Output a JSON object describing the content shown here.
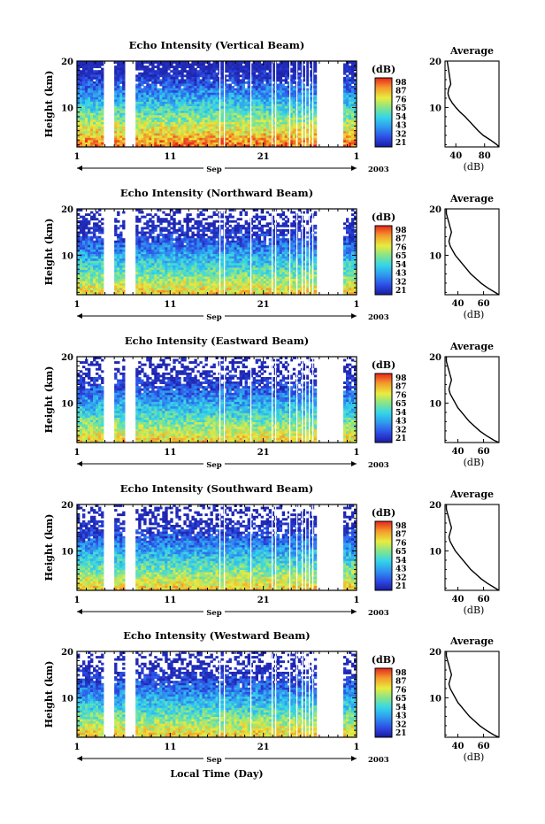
{
  "figure": {
    "xlabel": "Local Time (Day)",
    "month_label": "Sep",
    "year_label": "2003",
    "profile_title": "Average",
    "profile_xlabel": "(dB)",
    "colorbar_label": "(dB)"
  },
  "chart_data": [
    {
      "type": "heatmap",
      "title": "Echo Intensity (Vertical Beam)",
      "ylabel": "Height (km)",
      "x_ticks": [
        "1",
        "11",
        "21",
        "1"
      ],
      "y_ticks": [
        "10",
        "20"
      ],
      "ylim": [
        1.5,
        20
      ],
      "colorbar_ticks": [
        "98",
        "87",
        "76",
        "65",
        "54",
        "43",
        "32",
        "21"
      ],
      "colorbar_range": [
        21,
        98
      ],
      "profile": {
        "xticks": [
          "40",
          "80"
        ],
        "yticks": [
          "10",
          "20"
        ],
        "xlim": [
          25,
          100
        ],
        "height": [
          1.5,
          2,
          3,
          4,
          5,
          6,
          7,
          8,
          9,
          10,
          11,
          12,
          13,
          14,
          15,
          16,
          17,
          18,
          19,
          20
        ],
        "db": [
          100,
          97,
          88,
          78,
          71,
          65,
          59,
          53,
          46,
          40,
          35,
          31,
          29,
          30,
          33,
          32,
          31,
          30,
          29,
          28
        ]
      }
    },
    {
      "type": "heatmap",
      "title": "Echo Intensity (Northward Beam)",
      "ylabel": "Height (km)",
      "x_ticks": [
        "1",
        "11",
        "21",
        "1"
      ],
      "y_ticks": [
        "10",
        "20"
      ],
      "ylim": [
        1.5,
        20
      ],
      "colorbar_ticks": [
        "98",
        "87",
        "76",
        "65",
        "54",
        "43",
        "32",
        "21"
      ],
      "colorbar_range": [
        21,
        98
      ],
      "profile": {
        "xticks": [
          "40",
          "60"
        ],
        "yticks": [
          "10",
          "20"
        ],
        "xlim": [
          30,
          72
        ],
        "height": [
          1.5,
          2,
          3,
          4,
          5,
          6,
          7,
          8,
          9,
          10,
          11,
          12,
          13,
          14,
          15,
          16,
          17,
          18,
          19,
          20
        ],
        "db": [
          72,
          69,
          63,
          58,
          54,
          50,
          47,
          44,
          41,
          38,
          36,
          34,
          33,
          34,
          35,
          34,
          33,
          32,
          31,
          31
        ]
      }
    },
    {
      "type": "heatmap",
      "title": "Echo Intensity (Eastward Beam)",
      "ylabel": "Height (km)",
      "x_ticks": [
        "1",
        "11",
        "21",
        "1"
      ],
      "y_ticks": [
        "10",
        "20"
      ],
      "ylim": [
        1.5,
        20
      ],
      "colorbar_ticks": [
        "98",
        "87",
        "76",
        "65",
        "54",
        "43",
        "32",
        "21"
      ],
      "colorbar_range": [
        21,
        98
      ],
      "profile": {
        "xticks": [
          "40",
          "60"
        ],
        "yticks": [
          "10",
          "20"
        ],
        "xlim": [
          30,
          72
        ],
        "height": [
          1.5,
          2,
          3,
          4,
          5,
          6,
          7,
          8,
          9,
          10,
          11,
          12,
          13,
          14,
          15,
          16,
          17,
          18,
          19,
          20
        ],
        "db": [
          72,
          68,
          62,
          57,
          53,
          49,
          46,
          43,
          40,
          38,
          36,
          34,
          33,
          34,
          35,
          34,
          33,
          32,
          31,
          31
        ]
      }
    },
    {
      "type": "heatmap",
      "title": "Echo Intensity (Southward Beam)",
      "ylabel": "Height (km)",
      "x_ticks": [
        "1",
        "11",
        "21",
        "1"
      ],
      "y_ticks": [
        "10",
        "20"
      ],
      "ylim": [
        1.5,
        20
      ],
      "colorbar_ticks": [
        "98",
        "87",
        "76",
        "65",
        "54",
        "43",
        "32",
        "21"
      ],
      "colorbar_range": [
        21,
        98
      ],
      "profile": {
        "xticks": [
          "40",
          "60"
        ],
        "yticks": [
          "10",
          "20"
        ],
        "xlim": [
          30,
          72
        ],
        "height": [
          1.5,
          2,
          3,
          4,
          5,
          6,
          7,
          8,
          9,
          10,
          11,
          12,
          13,
          14,
          15,
          16,
          17,
          18,
          19,
          20
        ],
        "db": [
          72,
          69,
          63,
          58,
          54,
          50,
          47,
          44,
          41,
          38,
          36,
          34,
          33,
          34,
          35,
          34,
          33,
          32,
          31,
          31
        ]
      }
    },
    {
      "type": "heatmap",
      "title": "Echo Intensity (Westward Beam)",
      "ylabel": "Height (km)",
      "x_ticks": [
        "1",
        "11",
        "21",
        "1"
      ],
      "y_ticks": [
        "10",
        "20"
      ],
      "ylim": [
        1.5,
        20
      ],
      "colorbar_ticks": [
        "98",
        "87",
        "76",
        "65",
        "54",
        "43",
        "32",
        "21"
      ],
      "colorbar_range": [
        21,
        98
      ],
      "profile": {
        "xticks": [
          "40",
          "60"
        ],
        "yticks": [
          "10",
          "20"
        ],
        "xlim": [
          30,
          72
        ],
        "height": [
          1.5,
          2,
          3,
          4,
          5,
          6,
          7,
          8,
          9,
          10,
          11,
          12,
          13,
          14,
          15,
          16,
          17,
          18,
          19,
          20
        ],
        "db": [
          72,
          68,
          62,
          57,
          53,
          49,
          46,
          43,
          40,
          38,
          36,
          34,
          33,
          34,
          35,
          34,
          33,
          32,
          31,
          31
        ]
      }
    }
  ]
}
